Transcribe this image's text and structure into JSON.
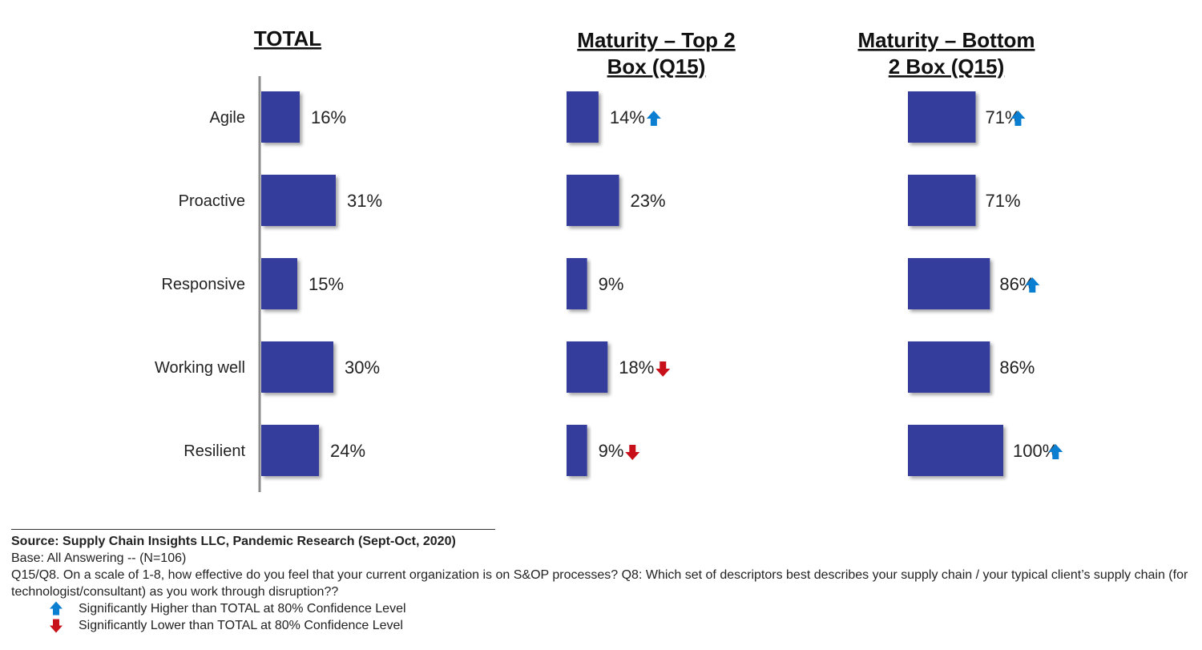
{
  "chart_data": {
    "type": "bar",
    "orientation": "horizontal",
    "categories": [
      "Agile",
      "Proactive",
      "Responsive",
      "Working well",
      "Resilient"
    ],
    "panels": [
      {
        "title_lines": [
          "TOTAL"
        ],
        "values": [
          16,
          31,
          15,
          30,
          24
        ],
        "labels": [
          "16%",
          "31%",
          "15%",
          "30%",
          "24%"
        ],
        "significance": [
          "",
          "",
          "",
          "",
          ""
        ]
      },
      {
        "title_lines": [
          "Maturity – Top 2",
          "Box (Q15)"
        ],
        "values": [
          14,
          23,
          9,
          18,
          9
        ],
        "labels": [
          "14%",
          "23%",
          "9%",
          "18%",
          "9%"
        ],
        "significance": [
          "higher",
          "",
          "",
          "lower",
          "lower"
        ]
      },
      {
        "title_lines": [
          "Maturity – Bottom",
          "2 Box (Q15)"
        ],
        "values": [
          71,
          71,
          86,
          86,
          100
        ],
        "labels": [
          "71%",
          "71%",
          "86%",
          "86%",
          "100%"
        ],
        "significance": [
          "higher",
          "",
          "higher",
          "",
          "higher"
        ]
      }
    ],
    "xlim": [
      0,
      100
    ],
    "grid": false,
    "colors": {
      "bar": "#343d9c",
      "higher_arrow": "#0a7ed1",
      "lower_arrow": "#c8101a",
      "axis": "#8c8c8c"
    }
  },
  "footer": {
    "source": "Source:  Supply Chain Insights LLC, Pandemic Research (Sept-Oct, 2020)",
    "base": "Base: All Answering -- (N=106)",
    "question": "Q15/Q8. On a scale of 1-8, how effective do you feel that your current organization is on S&OP processes? Q8: Which set of descriptors best describes your supply chain / your typical client’s supply chain (for technologist/consultant) as you work through disruption??",
    "legend_higher": "Significantly Higher than TOTAL at 80% Confidence Level",
    "legend_lower": "Significantly Lower than TOTAL at 80% Confidence Level"
  }
}
